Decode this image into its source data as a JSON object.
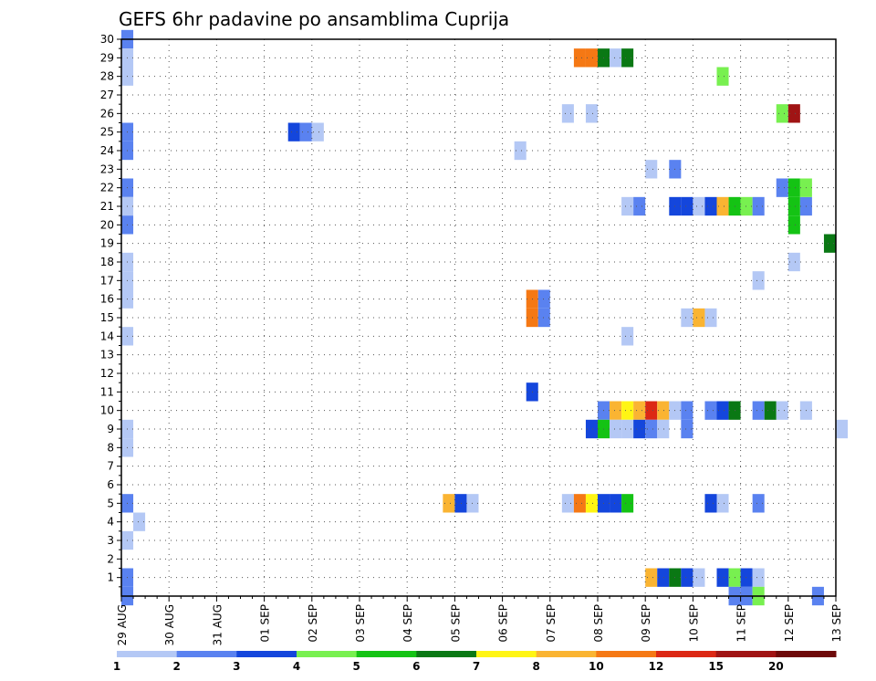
{
  "chart_data": {
    "type": "heatmap",
    "title": "GEFS 6hr padavine po ansamblima Cuprija",
    "xlabel": "",
    "ylabel": "",
    "x_ticks": [
      "29 AUG",
      "30 AUG",
      "31 AUG",
      "01 SEP",
      "02 SEP",
      "03 SEP",
      "04 SEP",
      "05 SEP",
      "06 SEP",
      "07 SEP",
      "08 SEP",
      "09 SEP",
      "10 SEP",
      "11 SEP",
      "12 SEP",
      "13 SEP"
    ],
    "y_ticks": [
      1,
      2,
      3,
      4,
      5,
      6,
      7,
      8,
      9,
      10,
      11,
      12,
      13,
      14,
      15,
      16,
      17,
      18,
      19,
      20,
      21,
      22,
      23,
      24,
      25,
      26,
      27,
      28,
      29,
      30
    ],
    "time_steps_per_day": 4,
    "x_range": [
      0,
      15
    ],
    "y_range": [
      0,
      30
    ],
    "grid": true,
    "legend_position": "bottom",
    "legend": {
      "thresholds": [
        "1",
        "2",
        "3",
        "4",
        "5",
        "6",
        "7",
        "8",
        "10",
        "12",
        "15",
        "20"
      ],
      "colors": [
        "#b4c8f5",
        "#5a82f0",
        "#1446dc",
        "#78f050",
        "#14c314",
        "#0a7814",
        "#fff514",
        "#fab432",
        "#f57814",
        "#dc2814",
        "#a01414",
        "#6e0a0a"
      ]
    },
    "cells": [
      {
        "y": 30,
        "t": 0,
        "c": 1
      },
      {
        "y": 29,
        "t": 0,
        "c": 0
      },
      {
        "y": 28,
        "t": 0,
        "c": 0
      },
      {
        "y": 25,
        "t": 0,
        "c": 1
      },
      {
        "y": 24,
        "t": 0,
        "c": 1
      },
      {
        "y": 22,
        "t": 0,
        "c": 1
      },
      {
        "y": 21,
        "t": 0,
        "c": 0
      },
      {
        "y": 20,
        "t": 0,
        "c": 1
      },
      {
        "y": 18,
        "t": 0,
        "c": 0
      },
      {
        "y": 17,
        "t": 0,
        "c": 0
      },
      {
        "y": 16,
        "t": 0,
        "c": 0
      },
      {
        "y": 14,
        "t": 0,
        "c": 0
      },
      {
        "y": 9,
        "t": 0,
        "c": 0
      },
      {
        "y": 8,
        "t": 0,
        "c": 0
      },
      {
        "y": 5,
        "t": 0,
        "c": 1
      },
      {
        "y": 3,
        "t": 0,
        "c": 0
      },
      {
        "y": 1,
        "t": 0,
        "c": 1
      },
      {
        "y": 0,
        "t": 0,
        "c": 1
      },
      {
        "y": 4,
        "t": 1,
        "c": 0
      },
      {
        "y": 25,
        "t": 14,
        "c": 2
      },
      {
        "y": 25,
        "t": 15,
        "c": 1
      },
      {
        "y": 25,
        "t": 16,
        "c": 0
      },
      {
        "y": 5,
        "t": 27,
        "c": 7
      },
      {
        "y": 5,
        "t": 28,
        "c": 2
      },
      {
        "y": 5,
        "t": 29,
        "c": 0
      },
      {
        "y": 24,
        "t": 33,
        "c": 0
      },
      {
        "y": 16,
        "t": 34,
        "c": 8
      },
      {
        "y": 15,
        "t": 34,
        "c": 8
      },
      {
        "y": 16,
        "t": 35,
        "c": 1
      },
      {
        "y": 15,
        "t": 35,
        "c": 1
      },
      {
        "y": 11,
        "t": 34,
        "c": 2
      },
      {
        "y": 26,
        "t": 37,
        "c": 0
      },
      {
        "y": 5,
        "t": 37,
        "c": 0
      },
      {
        "y": 29,
        "t": 38,
        "c": 8
      },
      {
        "y": 29,
        "t": 39,
        "c": 8
      },
      {
        "y": 29,
        "t": 40,
        "c": 5
      },
      {
        "y": 29,
        "t": 41,
        "c": 0
      },
      {
        "y": 29,
        "t": 42,
        "c": 5
      },
      {
        "y": 5,
        "t": 38,
        "c": 8
      },
      {
        "y": 5,
        "t": 39,
        "c": 6
      },
      {
        "y": 5,
        "t": 40,
        "c": 2
      },
      {
        "y": 5,
        "t": 41,
        "c": 2
      },
      {
        "y": 5,
        "t": 42,
        "c": 4
      },
      {
        "y": 26,
        "t": 39,
        "c": 0
      },
      {
        "y": 10,
        "t": 40,
        "c": 1
      },
      {
        "y": 10,
        "t": 41,
        "c": 7
      },
      {
        "y": 10,
        "t": 42,
        "c": 6
      },
      {
        "y": 10,
        "t": 43,
        "c": 7
      },
      {
        "y": 10,
        "t": 44,
        "c": 9
      },
      {
        "y": 10,
        "t": 45,
        "c": 7
      },
      {
        "y": 10,
        "t": 46,
        "c": 0
      },
      {
        "y": 10,
        "t": 47,
        "c": 1
      },
      {
        "y": 10,
        "t": 49,
        "c": 1
      },
      {
        "y": 10,
        "t": 50,
        "c": 2
      },
      {
        "y": 10,
        "t": 51,
        "c": 5
      },
      {
        "y": 10,
        "t": 53,
        "c": 1
      },
      {
        "y": 10,
        "t": 54,
        "c": 5
      },
      {
        "y": 10,
        "t": 55,
        "c": 0
      },
      {
        "y": 10,
        "t": 57,
        "c": 0
      },
      {
        "y": 9,
        "t": 39,
        "c": 2
      },
      {
        "y": 9,
        "t": 40,
        "c": 4
      },
      {
        "y": 9,
        "t": 41,
        "c": 0
      },
      {
        "y": 9,
        "t": 42,
        "c": 0
      },
      {
        "y": 9,
        "t": 43,
        "c": 2
      },
      {
        "y": 9,
        "t": 44,
        "c": 1
      },
      {
        "y": 9,
        "t": 45,
        "c": 0
      },
      {
        "y": 9,
        "t": 47,
        "c": 1
      },
      {
        "y": 9,
        "t": 60,
        "c": 0
      },
      {
        "y": 21,
        "t": 42,
        "c": 0
      },
      {
        "y": 21,
        "t": 43,
        "c": 1
      },
      {
        "y": 21,
        "t": 46,
        "c": 2
      },
      {
        "y": 21,
        "t": 47,
        "c": 2
      },
      {
        "y": 21,
        "t": 48,
        "c": 0
      },
      {
        "y": 21,
        "t": 49,
        "c": 2
      },
      {
        "y": 21,
        "t": 50,
        "c": 7
      },
      {
        "y": 21,
        "t": 51,
        "c": 4
      },
      {
        "y": 21,
        "t": 52,
        "c": 3
      },
      {
        "y": 21,
        "t": 53,
        "c": 1
      },
      {
        "y": 21,
        "t": 56,
        "c": 4
      },
      {
        "y": 21,
        "t": 57,
        "c": 1
      },
      {
        "y": 20,
        "t": 56,
        "c": 4
      },
      {
        "y": 22,
        "t": 55,
        "c": 1
      },
      {
        "y": 22,
        "t": 56,
        "c": 4
      },
      {
        "y": 22,
        "t": 57,
        "c": 3
      },
      {
        "y": 14,
        "t": 42,
        "c": 0
      },
      {
        "y": 23,
        "t": 44,
        "c": 0
      },
      {
        "y": 23,
        "t": 46,
        "c": 1
      },
      {
        "y": 1,
        "t": 44,
        "c": 7
      },
      {
        "y": 1,
        "t": 45,
        "c": 2
      },
      {
        "y": 1,
        "t": 46,
        "c": 5
      },
      {
        "y": 1,
        "t": 47,
        "c": 2
      },
      {
        "y": 1,
        "t": 48,
        "c": 0
      },
      {
        "y": 1,
        "t": 50,
        "c": 2
      },
      {
        "y": 1,
        "t": 51,
        "c": 3
      },
      {
        "y": 1,
        "t": 52,
        "c": 2
      },
      {
        "y": 1,
        "t": 53,
        "c": 0
      },
      {
        "y": 0,
        "t": 51,
        "c": 1
      },
      {
        "y": 0,
        "t": 52,
        "c": 1
      },
      {
        "y": 0,
        "t": 53,
        "c": 3
      },
      {
        "y": 0,
        "t": 58,
        "c": 1
      },
      {
        "y": 15,
        "t": 47,
        "c": 0
      },
      {
        "y": 15,
        "t": 48,
        "c": 7
      },
      {
        "y": 15,
        "t": 49,
        "c": 0
      },
      {
        "y": 5,
        "t": 49,
        "c": 2
      },
      {
        "y": 5,
        "t": 50,
        "c": 0
      },
      {
        "y": 5,
        "t": 53,
        "c": 1
      },
      {
        "y": 28,
        "t": 50,
        "c": 3
      },
      {
        "y": 17,
        "t": 53,
        "c": 0
      },
      {
        "y": 26,
        "t": 55,
        "c": 3
      },
      {
        "y": 26,
        "t": 56,
        "c": 10
      },
      {
        "y": 18,
        "t": 56,
        "c": 0
      },
      {
        "y": 19,
        "t": 59,
        "c": 5
      }
    ]
  }
}
